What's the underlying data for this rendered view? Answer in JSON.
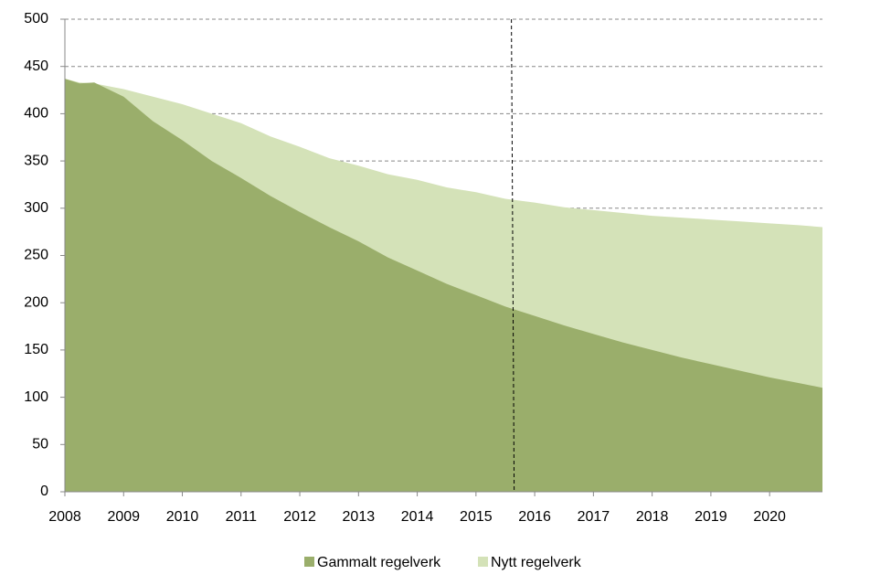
{
  "chart_data": {
    "type": "area",
    "x": [
      2008,
      2008.25,
      2008.5,
      2009,
      2009.5,
      2010,
      2010.5,
      2011,
      2011.5,
      2012,
      2012.5,
      2013,
      2013.5,
      2014,
      2014.5,
      2015,
      2015.5,
      2016,
      2016.5,
      2017,
      2017.5,
      2018,
      2018.5,
      2019,
      2019.5,
      2020,
      2020.5,
      2020.9
    ],
    "series": [
      {
        "name": "Nytt regelverk",
        "color": "#d4e2b8",
        "values": [
          437,
          433,
          432,
          426,
          418,
          410,
          400,
          390,
          376,
          365,
          353,
          345,
          336,
          330,
          322,
          317,
          310,
          306,
          301,
          298,
          295,
          292,
          290,
          288,
          286,
          284,
          282,
          280
        ]
      },
      {
        "name": "Gammalt regelverk",
        "color": "#9aae6b",
        "values": [
          437,
          432,
          433,
          418,
          392,
          372,
          350,
          332,
          313,
          296,
          280,
          265,
          248,
          234,
          220,
          208,
          196,
          186,
          176,
          167,
          158,
          150,
          142,
          135,
          128,
          121,
          115,
          110
        ]
      }
    ],
    "legend_order": [
      "Gammalt regelverk",
      "Nytt regelverk"
    ],
    "xlim": [
      2008,
      2020.9
    ],
    "xticks": [
      2008,
      2009,
      2010,
      2011,
      2012,
      2013,
      2014,
      2015,
      2016,
      2017,
      2018,
      2019,
      2020
    ],
    "ylim": [
      0,
      500
    ],
    "yticks": [
      0,
      50,
      100,
      150,
      200,
      250,
      300,
      350,
      400,
      450,
      500
    ],
    "grid": true,
    "vline_x": 2015.65,
    "legend": "bottom"
  }
}
